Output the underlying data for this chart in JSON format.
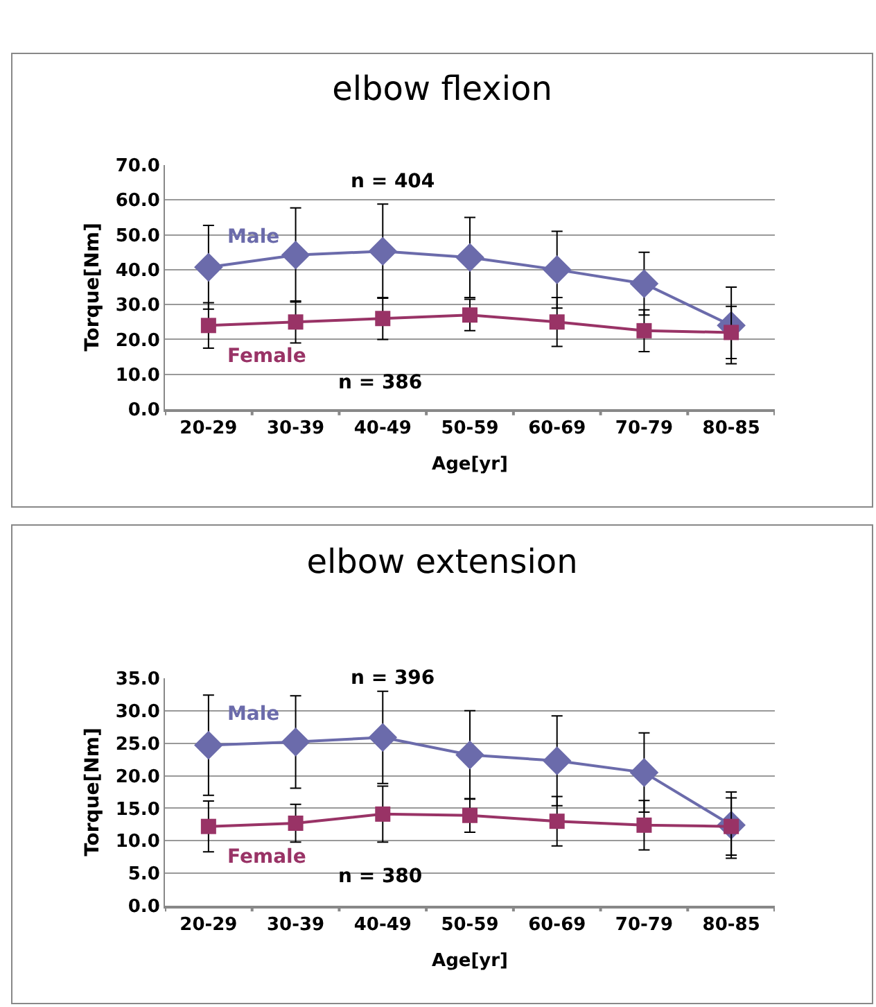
{
  "chart_data": [
    {
      "type": "line",
      "title": "elbow flexion",
      "xlabel": "Age[yr]",
      "ylabel": "Torque[Nm]",
      "categories": [
        "20-29",
        "30-39",
        "40-49",
        "50-59",
        "60-69",
        "70-79",
        "80-85"
      ],
      "ylim": [
        0,
        70
      ],
      "yticks": [
        {
          "value": 0,
          "label": "0.0"
        },
        {
          "value": 10,
          "label": "10.0"
        },
        {
          "value": 20,
          "label": "20.0"
        },
        {
          "value": 30,
          "label": "30.0"
        },
        {
          "value": 40,
          "label": "40.0"
        },
        {
          "value": 50,
          "label": "50.0"
        },
        {
          "value": 60,
          "label": "60.0"
        },
        {
          "value": 70,
          "label": "70.0"
        }
      ],
      "grid": "y",
      "legend": false,
      "series": [
        {
          "name": "Male",
          "color": "#6b6bab",
          "marker": "diamond",
          "values": [
            40.7,
            44.2,
            45.3,
            43.5,
            40.0,
            36.0,
            24.0
          ],
          "errors": [
            12,
            13.5,
            13.5,
            11.5,
            11,
            9,
            11
          ]
        },
        {
          "name": "Female",
          "color": "#993366",
          "marker": "square",
          "values": [
            24,
            25,
            26,
            27,
            25,
            22.5,
            22
          ],
          "errors": [
            6.5,
            6,
            6,
            4.5,
            7,
            6,
            7.5
          ]
        }
      ],
      "annotations": [
        "n = 404",
        "n = 386"
      ]
    },
    {
      "type": "line",
      "title": "elbow extension",
      "xlabel": "Age[yr]",
      "ylabel": "Torque[Nm]",
      "categories": [
        "20-29",
        "30-39",
        "40-49",
        "50-59",
        "60-69",
        "70-79",
        "80-85"
      ],
      "ylim": [
        0,
        35
      ],
      "yticks": [
        {
          "value": 0,
          "label": "0.0"
        },
        {
          "value": 5,
          "label": "5.0"
        },
        {
          "value": 10,
          "label": "10.0"
        },
        {
          "value": 15,
          "label": "15.0"
        },
        {
          "value": 20,
          "label": "20.0"
        },
        {
          "value": 25,
          "label": "25.0"
        },
        {
          "value": 30,
          "label": "30.0"
        },
        {
          "value": 35,
          "label": "35.0"
        }
      ],
      "grid": "y",
      "legend": false,
      "series": [
        {
          "name": "Male",
          "color": "#6b6bab",
          "marker": "diamond",
          "values": [
            24.7,
            25.2,
            25.9,
            23.2,
            22.3,
            20.5,
            12.4
          ],
          "errors": [
            7.7,
            7.1,
            7.1,
            6.8,
            6.9,
            6.1,
            5.1
          ]
        },
        {
          "name": "Female",
          "color": "#993366",
          "marker": "square",
          "values": [
            12.2,
            12.7,
            14.1,
            13.9,
            13.0,
            12.4,
            12.2
          ],
          "errors": [
            3.9,
            2.9,
            4.3,
            2.6,
            3.8,
            3.8,
            4.4
          ]
        }
      ],
      "annotations": [
        "n = 396",
        "n = 380"
      ]
    }
  ]
}
